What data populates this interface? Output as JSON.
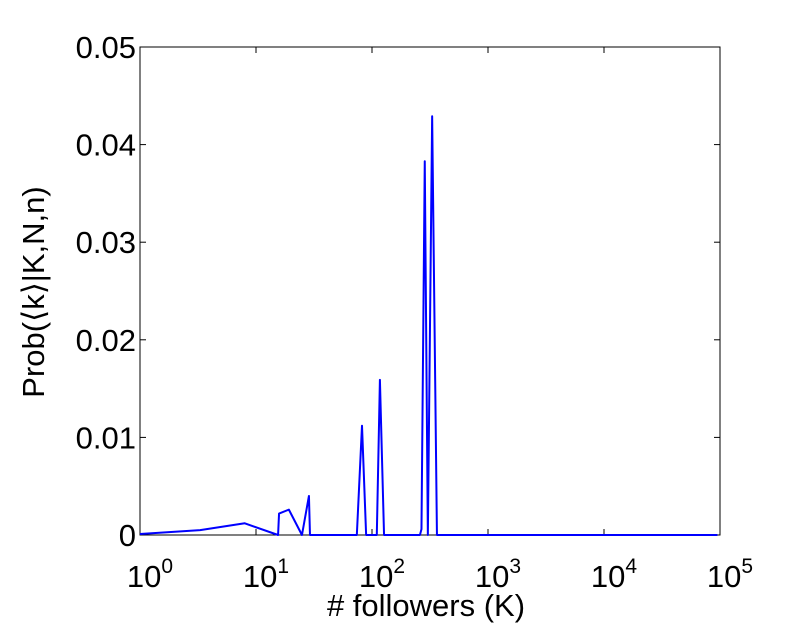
{
  "chart_data": {
    "type": "line",
    "x_label": "# followers (K)",
    "y_label": "Prob(⟨k⟩|K,N,n)",
    "x_scale": "log",
    "xlim": [
      1,
      100000
    ],
    "xticks": [
      {
        "value": 1,
        "label": "10",
        "exponent": "0"
      },
      {
        "value": 10,
        "label": "10",
        "exponent": "1"
      },
      {
        "value": 100,
        "label": "10",
        "exponent": "2"
      },
      {
        "value": 1000,
        "label": "10",
        "exponent": "3"
      },
      {
        "value": 10000,
        "label": "10",
        "exponent": "4"
      },
      {
        "value": 100000,
        "label": "10",
        "exponent": "5"
      }
    ],
    "ylim": [
      0,
      0.05
    ],
    "yticks": [
      0,
      0.01,
      0.02,
      0.03,
      0.04,
      0.05
    ],
    "series": [
      {
        "color": "#0000ff",
        "x": [
          1,
          3.3,
          8.0,
          15.5,
          15.8,
          19.2,
          24.9,
          28.6,
          29.2,
          74,
          82,
          89,
          110,
          117,
          127,
          259,
          267,
          285,
          303,
          330,
          363,
          95000
        ],
        "values": [
          0.0001,
          0.0005,
          0.0012,
          0,
          0.0022,
          0.0026,
          0,
          0.004,
          0,
          0,
          0.0112,
          0,
          0,
          0.0159,
          0,
          0,
          0.0006,
          0.0383,
          0,
          0.0429,
          0,
          0
        ]
      }
    ]
  }
}
